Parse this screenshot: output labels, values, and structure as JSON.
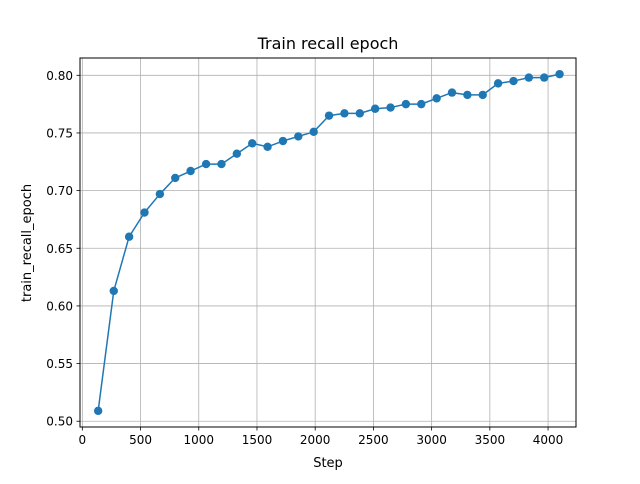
{
  "chart_data": {
    "type": "line",
    "title": "Train recall epoch",
    "xlabel": "Step",
    "ylabel": "train_recall_epoch",
    "xlim": [
      -20,
      4240
    ],
    "ylim": [
      0.495,
      0.815
    ],
    "xticks": [
      0,
      500,
      1000,
      1500,
      2000,
      2500,
      3000,
      3500,
      4000
    ],
    "xtick_labels": [
      "0",
      "500",
      "1000",
      "1500",
      "2000",
      "2500",
      "3000",
      "3500",
      "4000"
    ],
    "yticks": [
      0.5,
      0.55,
      0.6,
      0.65,
      0.7,
      0.75,
      0.8
    ],
    "ytick_labels": [
      "0.50",
      "0.55",
      "0.60",
      "0.65",
      "0.70",
      "0.75",
      "0.80"
    ],
    "grid": true,
    "series": [
      {
        "color": "#1f77b4",
        "marker": "circle",
        "x": [
          136,
          270,
          402,
          534,
          666,
          798,
          930,
          1063,
          1195,
          1327,
          1459,
          1591,
          1723,
          1855,
          1987,
          2119,
          2251,
          2383,
          2515,
          2647,
          2779,
          2911,
          3043,
          3175,
          3307,
          3439,
          3571,
          3703,
          3835,
          3967,
          4099
        ],
        "y": [
          0.509,
          0.613,
          0.66,
          0.681,
          0.697,
          0.711,
          0.717,
          0.723,
          0.723,
          0.732,
          0.741,
          0.738,
          0.743,
          0.747,
          0.751,
          0.765,
          0.767,
          0.767,
          0.771,
          0.772,
          0.775,
          0.775,
          0.78,
          0.785,
          0.783,
          0.783,
          0.793,
          0.795,
          0.798,
          0.798,
          0.801
        ]
      }
    ]
  }
}
